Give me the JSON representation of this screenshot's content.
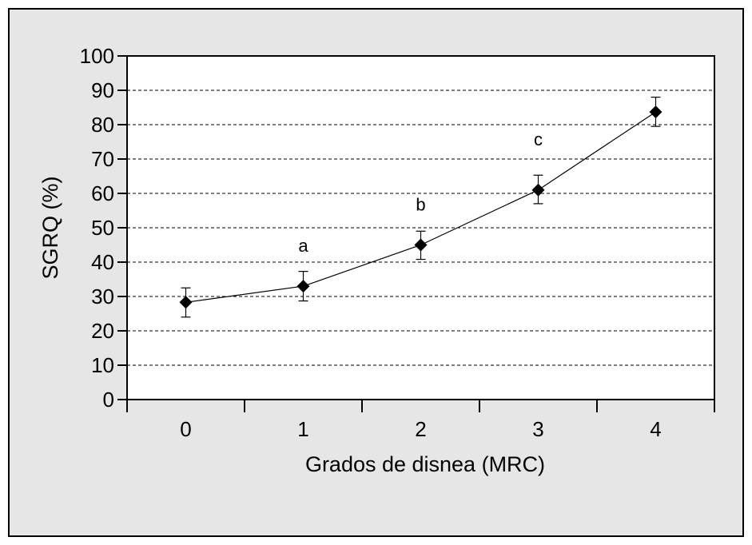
{
  "chart_data": {
    "type": "line",
    "title": "",
    "xlabel": "Grados de disnea (MRC)",
    "ylabel": "SGRQ (%)",
    "x": [
      0,
      1,
      2,
      3,
      4
    ],
    "x_tick_labels": [
      "0",
      "1",
      "2",
      "3",
      "4"
    ],
    "ylim": [
      0,
      100
    ],
    "y_ticks": [
      0,
      10,
      20,
      30,
      40,
      50,
      60,
      70,
      80,
      90,
      100
    ],
    "y_tick_labels": [
      "0",
      "10",
      "20",
      "30",
      "40",
      "50",
      "60",
      "70",
      "80",
      "90",
      "100"
    ],
    "grid": "horizontal dashed",
    "marker": "diamond",
    "series": [
      {
        "values": [
          28.3,
          33.0,
          45.0,
          61.0,
          83.7
        ],
        "error_upper": [
          32.5,
          37.3,
          49.0,
          65.3,
          88.0
        ],
        "error_lower": [
          24.0,
          28.7,
          40.8,
          57.0,
          79.5
        ]
      }
    ],
    "annotations": [
      {
        "x": 1,
        "y": 43,
        "text": "a"
      },
      {
        "x": 2,
        "y": 55,
        "text": "b"
      },
      {
        "x": 3,
        "y": 74,
        "text": "c"
      }
    ],
    "colors": {
      "background": "#e6e6e6",
      "plot": "#ffffff",
      "line": "#000000"
    }
  }
}
